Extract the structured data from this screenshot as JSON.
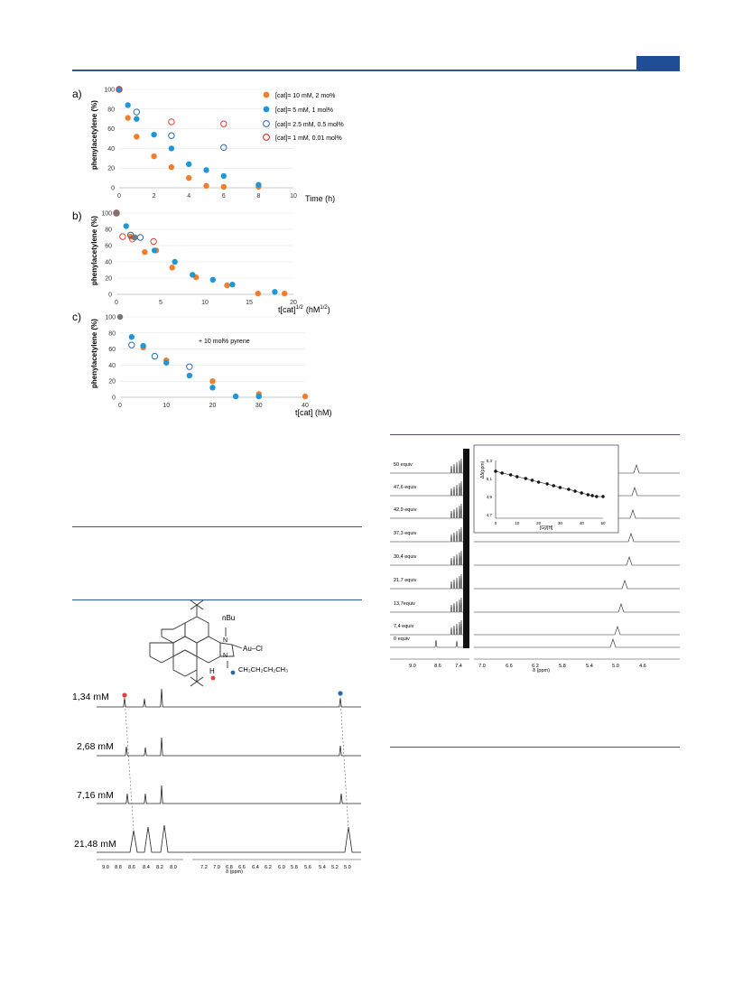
{
  "page": {
    "accent": "#2e5597"
  },
  "panels": {
    "a": {
      "label": "a)",
      "xlabel": "Time (h)"
    },
    "b": {
      "label": "b)",
      "xlabel": "t[cat]",
      "xlabel_sup": "1/2",
      "xlabel_unit": "(hM",
      "xlabel_unit_sup": "1/2",
      "xlabel_close": ")"
    },
    "c": {
      "label": "c)",
      "xlabel": "t[cat] (hM)",
      "note": "+ 10 mol% pyrene"
    },
    "ylabel": "phenylacetylene (%)"
  },
  "legend": [
    "[cat]= 10 mM, 2 mo%",
    "[cat]= 5 mM, 1 mol%",
    "[cat]= 2.5 mM, 0.5 mol%",
    "[cat]= 1 mM, 0.01 mol%"
  ],
  "colors": {
    "orange": "#f07f2d",
    "blue": "#1f96d6",
    "navy": "#2b6aa6",
    "red": "#e0403c",
    "gray": "#777777"
  },
  "chart_data": [
    {
      "type": "scatter",
      "panel": "a",
      "xlabel": "Time (h)",
      "ylabel": "phenylacetylene (%)",
      "xlim": [
        0,
        10
      ],
      "ylim": [
        0,
        100
      ],
      "xticks": [
        0,
        2,
        4,
        6,
        8,
        10
      ],
      "yticks": [
        0,
        20,
        40,
        60,
        80,
        100
      ],
      "series": [
        {
          "name": "[cat]= 10 mM, 2 mo%",
          "marker": "filled",
          "color": "#f07f2d",
          "x": [
            0,
            0.5,
            1,
            2,
            3,
            4,
            5,
            6,
            8
          ],
          "y": [
            100,
            71,
            52,
            32,
            21,
            10,
            2,
            1,
            1
          ]
        },
        {
          "name": "[cat]= 5 mM, 1 mol%",
          "marker": "filled",
          "color": "#1f96d6",
          "x": [
            0,
            0.5,
            1,
            2,
            3,
            4,
            5,
            6,
            8
          ],
          "y": [
            100,
            84,
            70,
            54,
            40,
            24,
            18,
            12,
            3
          ]
        },
        {
          "name": "[cat]= 2.5 mM, 0.5 mol%",
          "marker": "open",
          "color": "#2b6aa6",
          "x": [
            0,
            1,
            3,
            6
          ],
          "y": [
            100,
            77,
            53,
            41
          ]
        },
        {
          "name": "[cat]= 1 mM, 0.01 mol%",
          "marker": "open",
          "color": "#e0403c",
          "x": [
            0,
            3,
            6
          ],
          "y": [
            100,
            67,
            65
          ]
        }
      ]
    },
    {
      "type": "scatter",
      "panel": "b",
      "xlim": [
        0,
        20
      ],
      "ylim": [
        0,
        100
      ],
      "xticks": [
        0,
        5,
        10,
        15,
        20
      ],
      "yticks": [
        0,
        20,
        40,
        60,
        80,
        100
      ],
      "series": [
        {
          "marker": "filled",
          "color": "#f07f2d",
          "x": [
            0,
            1.6,
            3.2,
            4.5,
            6.3,
            9.0,
            12.5,
            16,
            19
          ],
          "y": [
            100,
            71,
            52,
            54,
            33,
            21,
            11,
            1,
            1
          ]
        },
        {
          "marker": "filled",
          "color": "#1f96d6",
          "x": [
            0,
            1.1,
            2,
            4.3,
            6.6,
            8.6,
            10.9,
            13.1,
            17.9
          ],
          "y": [
            100,
            84,
            70,
            54,
            40,
            24,
            18,
            12,
            3
          ]
        },
        {
          "marker": "open",
          "color": "#2b6aa6",
          "x": [
            0,
            1.6,
            2.7
          ],
          "y": [
            100,
            73,
            70
          ]
        },
        {
          "marker": "open",
          "color": "#e0403c",
          "x": [
            0,
            0.7,
            1.8,
            4.2
          ],
          "y": [
            100,
            71,
            68,
            65
          ]
        },
        {
          "marker": "filled",
          "color": "#777777",
          "x": [
            0,
            2.1
          ],
          "y": [
            100,
            70
          ]
        }
      ]
    },
    {
      "type": "scatter",
      "panel": "c",
      "xlabel": "t[cat] (hM)",
      "ylabel": "phenylacetylene (%)",
      "xlim": [
        0,
        40
      ],
      "ylim": [
        0,
        100
      ],
      "xticks": [
        0,
        10,
        20,
        30,
        40
      ],
      "yticks": [
        0,
        20,
        40,
        60,
        80,
        100
      ],
      "series": [
        {
          "marker": "filled",
          "color": "#f07f2d",
          "x": [
            5,
            10,
            20,
            30,
            40
          ],
          "y": [
            62,
            46,
            20,
            4,
            1
          ]
        },
        {
          "marker": "filled",
          "color": "#1f96d6",
          "x": [
            2.5,
            5,
            10,
            15,
            20,
            25,
            30
          ],
          "y": [
            75,
            64,
            43,
            27,
            12,
            1,
            1
          ]
        },
        {
          "marker": "open",
          "color": "#2b6aa6",
          "x": [
            2.5,
            7.5,
            15
          ],
          "y": [
            65,
            51,
            38
          ]
        },
        {
          "marker": "filled",
          "color": "#777777",
          "x": [
            0
          ],
          "y": [
            100
          ]
        }
      ]
    },
    {
      "type": "scatter",
      "panel": "inset",
      "xlabel": "[G]/[H]",
      "ylabel": "Δδ(ppm)",
      "xlim": [
        0,
        50
      ],
      "ylim": [
        4.7,
        5.3
      ],
      "xticks": [
        0,
        10,
        20,
        30,
        40,
        50
      ],
      "yticks": [
        4.7,
        4.9,
        5.1,
        5.3
      ],
      "ytick_labels": [
        "4,7",
        "4,9",
        "5,1",
        "5,3"
      ],
      "series": [
        {
          "marker": "filled",
          "color": "#111111",
          "x": [
            0,
            3,
            7,
            10,
            14,
            17,
            20,
            24,
            27,
            30,
            34,
            37,
            40,
            43,
            45,
            47,
            50
          ],
          "y": [
            5.18,
            5.16,
            5.14,
            5.12,
            5.1,
            5.08,
            5.06,
            5.04,
            5.02,
            5.0,
            4.98,
            4.96,
            4.94,
            4.92,
            4.91,
            4.9,
            4.9
          ]
        }
      ]
    }
  ],
  "nmr_left": {
    "structure": {
      "nbu": "nBu",
      "aucl": "Au–Cl",
      "chain": "CH₂CH₂CH₂CH₃",
      "h": "H"
    },
    "labels": [
      "1,34 mM",
      "2,68 mM",
      "7,16 mM",
      "21,48 mM"
    ],
    "ticks": [
      "9.0",
      "8.8",
      "8.6",
      "8.4",
      "8.2",
      "8.0",
      "7.2",
      "7.0",
      "6.8",
      "6.6",
      "6.4",
      "6.2",
      "6.0",
      "5.8",
      "5.6",
      "5.4",
      "5.2",
      "5.0"
    ],
    "axis_title": "δ (ppm)"
  },
  "nmr_right": {
    "labels": [
      "50 equiv",
      "47,6 equiv",
      "42,9 equiv",
      "37,3 equiv",
      "30,4 equiv",
      "21,7 equiv",
      "13,7equiv",
      "7,4 equiv",
      "0 equiv"
    ],
    "ticks": [
      "9.0",
      "8.6",
      "7.4",
      "7.0",
      "6.6",
      "6.2",
      "5.8",
      "5.4",
      "5.0",
      "4.6"
    ],
    "axis_title": "δ (ppm)"
  }
}
